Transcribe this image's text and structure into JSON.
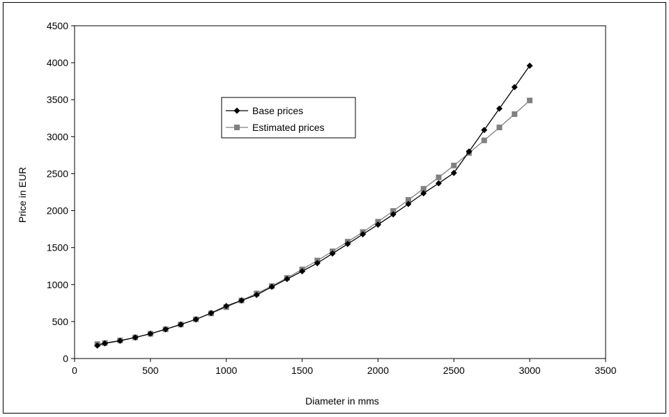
{
  "chart_data": {
    "type": "line",
    "title": "",
    "xlabel": "Diameter in mms",
    "ylabel": "Price in EUR",
    "xlim": [
      0,
      3500
    ],
    "ylim": [
      0,
      4500
    ],
    "x_ticks": [
      0,
      500,
      1000,
      1500,
      2000,
      2500,
      3000,
      3500
    ],
    "y_ticks": [
      0,
      500,
      1000,
      1500,
      2000,
      2500,
      3000,
      3500,
      4000,
      4500
    ],
    "grid": false,
    "legend_position": "upper-middle",
    "series": [
      {
        "name": "Base prices",
        "color": "#000000",
        "marker": "diamond",
        "x": [
          150,
          200,
          300,
          400,
          500,
          600,
          700,
          800,
          900,
          1000,
          1100,
          1200,
          1300,
          1400,
          1500,
          1600,
          1700,
          1800,
          1900,
          2000,
          2100,
          2200,
          2300,
          2400,
          2500,
          2600,
          2700,
          2800,
          2900,
          3000
        ],
        "y": [
          175,
          205,
          240,
          285,
          335,
          395,
          460,
          530,
          615,
          710,
          785,
          860,
          970,
          1075,
          1180,
          1290,
          1420,
          1550,
          1680,
          1810,
          1950,
          2090,
          2235,
          2370,
          2510,
          2800,
          3090,
          3380,
          3670,
          3960
        ]
      },
      {
        "name": "Estimated prices",
        "color": "#808080",
        "marker": "square",
        "x": [
          150,
          200,
          300,
          400,
          500,
          600,
          700,
          800,
          900,
          1000,
          1100,
          1200,
          1300,
          1400,
          1500,
          1600,
          1700,
          1800,
          1900,
          2000,
          2100,
          2200,
          2300,
          2400,
          2500,
          2600,
          2700,
          2800,
          2900,
          3000
        ],
        "y": [
          195,
          210,
          245,
          285,
          335,
          395,
          460,
          530,
          610,
          695,
          785,
          880,
          980,
          1090,
          1205,
          1325,
          1450,
          1580,
          1710,
          1850,
          1995,
          2145,
          2295,
          2450,
          2610,
          2780,
          2950,
          3125,
          3305,
          3490
        ]
      }
    ]
  }
}
